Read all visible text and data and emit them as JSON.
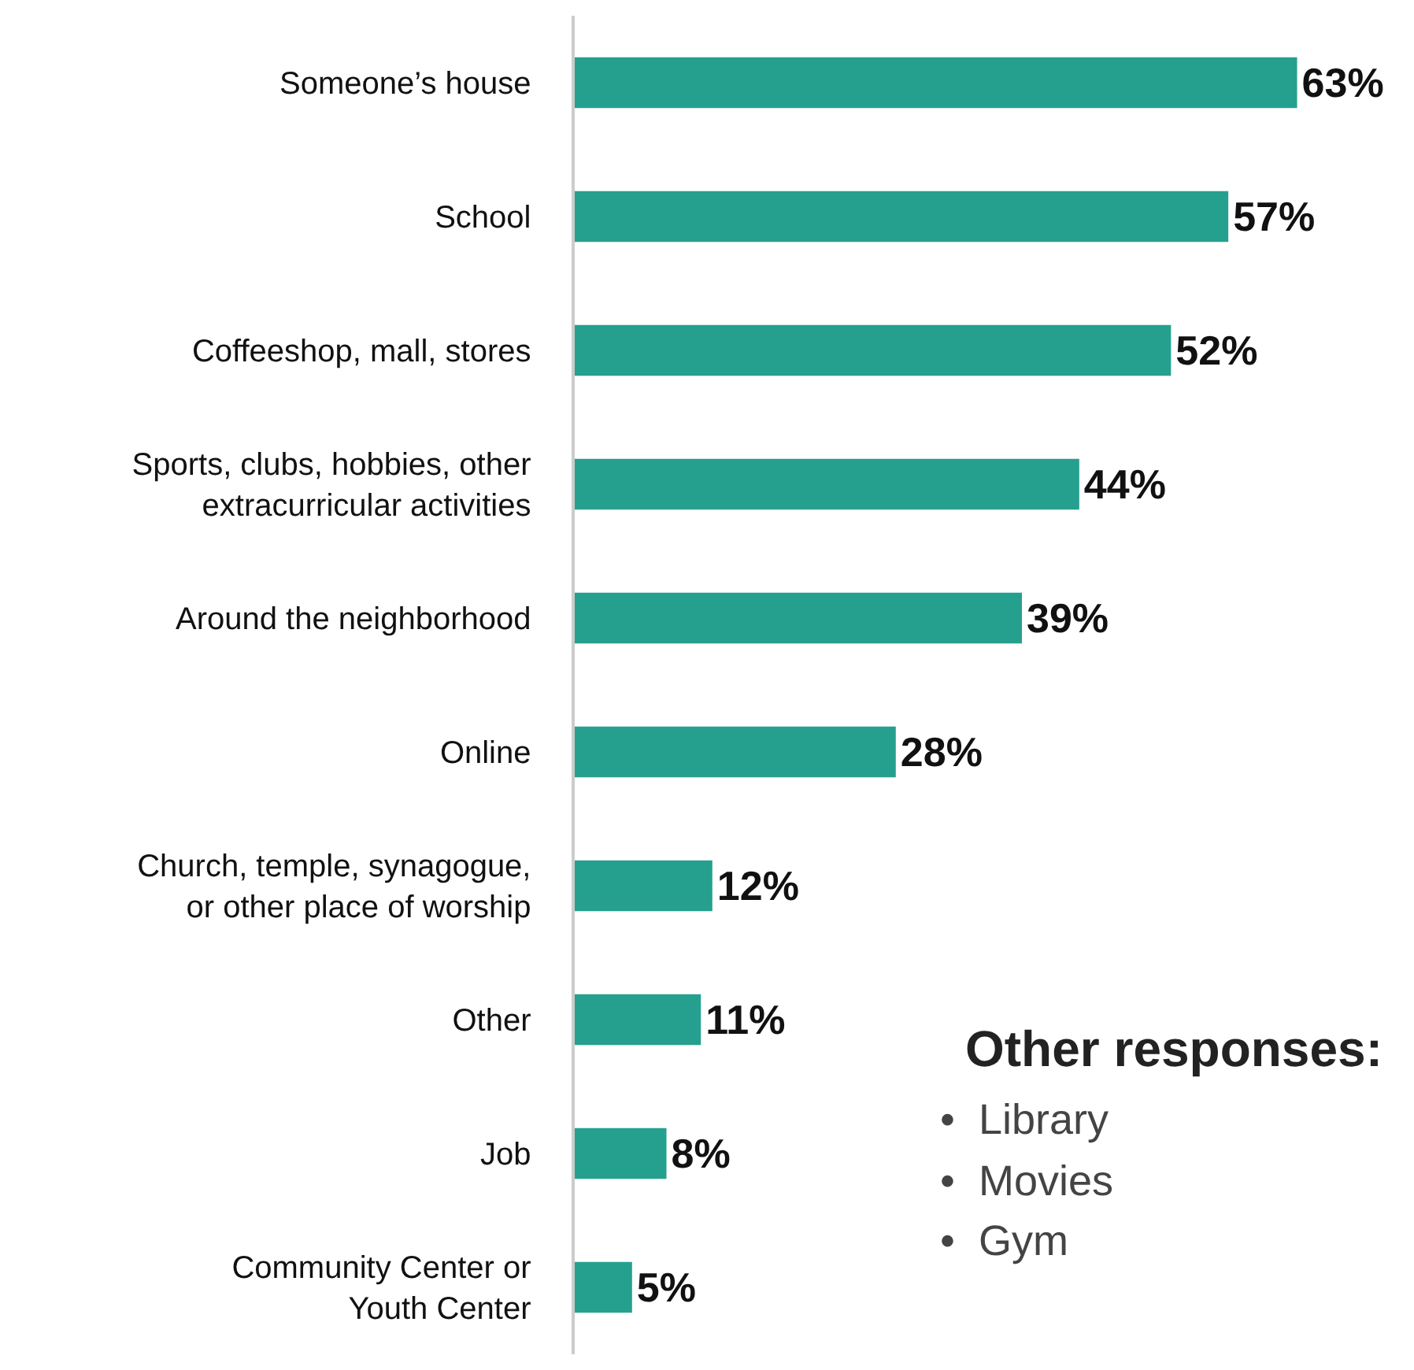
{
  "chart_data": {
    "type": "bar",
    "orientation": "horizontal",
    "categories": [
      "Someone’s house",
      "School",
      "Coffeeshop, mall, stores",
      "Sports, clubs, hobbies, other\nextracurricular activities",
      "Around the neighborhood",
      "Online",
      "Church, temple, synagogue,\nor other place of worship",
      "Other",
      "Job",
      "Community Center or\nYouth Center"
    ],
    "values": [
      63,
      57,
      52,
      44,
      39,
      28,
      12,
      11,
      8,
      5
    ],
    "value_labels": [
      "63%",
      "57%",
      "52%",
      "44%",
      "39%",
      "28%",
      "12%",
      "11%",
      "8%",
      "5%"
    ],
    "color": "#26a08e",
    "annotations": [
      "Other responses:",
      "•  Library",
      "•  Movies",
      "•  Gym"
    ]
  }
}
